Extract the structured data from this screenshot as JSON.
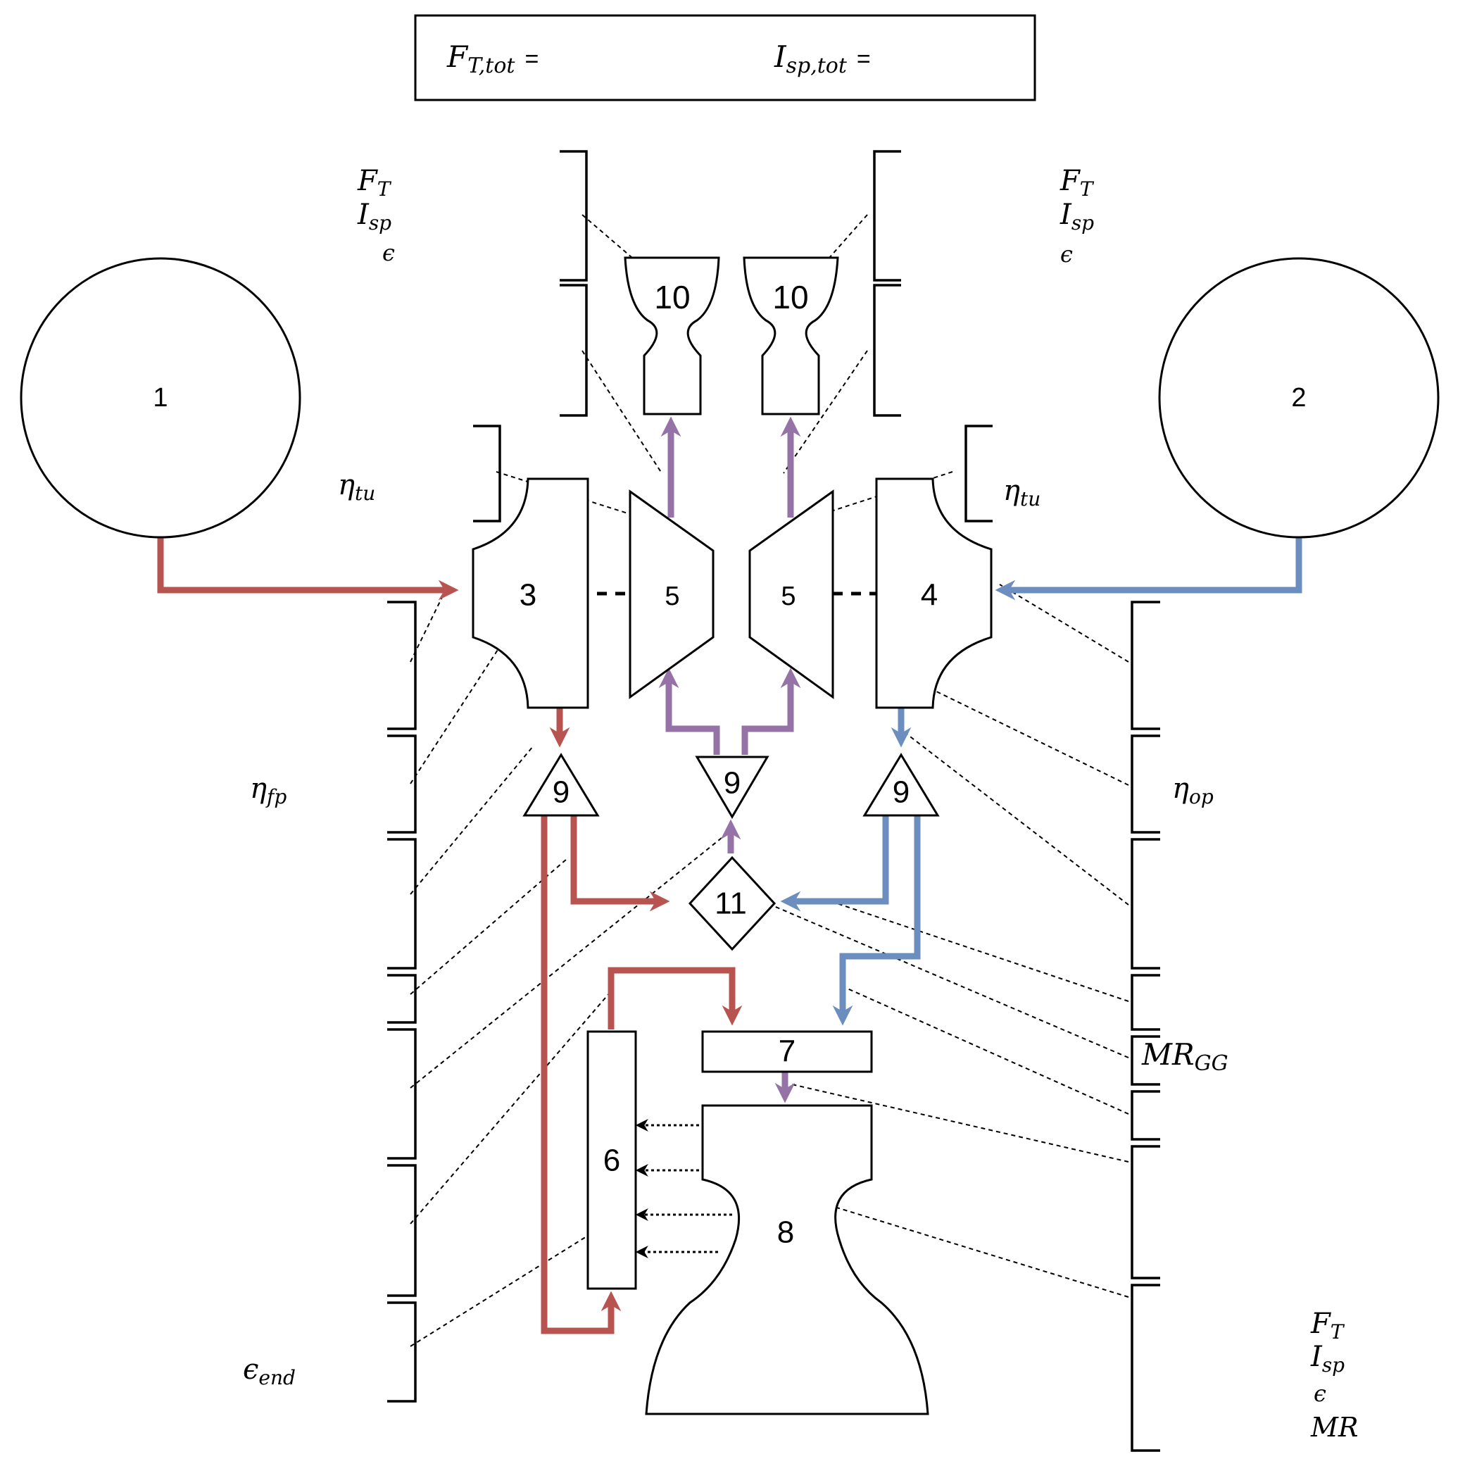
{
  "summary": {
    "thrust_label": "F",
    "thrust_sub": "T,tot",
    "isp_label": "I",
    "isp_sub": "sp,tot",
    "equals": "="
  },
  "components": {
    "tank_fuel": "1",
    "tank_oxidizer": "2",
    "fuel_pump": "3",
    "oxidizer_pump": "4",
    "turbine": "5",
    "regen_cooling": "6",
    "injector": "7",
    "main_chamber": "8",
    "valve": "9",
    "turbine_exhaust_nozzle": "10",
    "gas_generator": "11"
  },
  "parameters": {
    "eta_tu_left": {
      "sym": "η",
      "sub": "tu"
    },
    "eta_tu_right": {
      "sym": "η",
      "sub": "tu"
    },
    "eta_fp": {
      "sym": "η",
      "sub": "fp"
    },
    "eta_op": {
      "sym": "η",
      "sub": "op"
    },
    "eps_end": {
      "sym": "ϵ",
      "sub": "end"
    },
    "mr_gg": {
      "sym": "MR",
      "sub": "GG"
    },
    "nozzle_left": {
      "f": "F",
      "f_sub": "T",
      "i": "I",
      "i_sub": "sp",
      "eps": "ϵ"
    },
    "nozzle_right": {
      "f": "F",
      "f_sub": "T",
      "i": "I",
      "i_sub": "sp",
      "eps": "ϵ"
    },
    "main": {
      "f": "F",
      "f_sub": "T",
      "i": "I",
      "i_sub": "sp",
      "eps": "ϵ",
      "mr": "MR"
    }
  },
  "colors": {
    "fuel": "#b85450",
    "oxidizer": "#6c8ebf",
    "hot_gas": "#9673a6",
    "line": "#000000"
  }
}
